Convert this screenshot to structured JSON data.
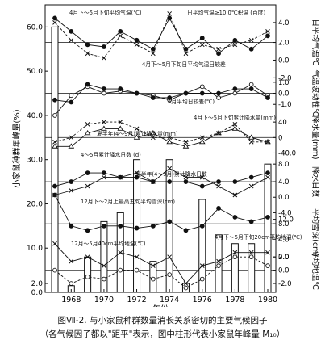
{
  "chart_data": {
    "type": "bar",
    "years": [
      1967,
      1968,
      1969,
      1970,
      1971,
      1972,
      1973,
      1974,
      1975,
      1976,
      1977,
      1978,
      1979,
      1980
    ],
    "bar_values": [
      60,
      1.5,
      8,
      16,
      18,
      30,
      7,
      30,
      2,
      21,
      13,
      11,
      11,
      29
    ],
    "left_axis": {
      "label": "小家鼠种群年峰量(%)",
      "ticks": [
        "0.0",
        "2.0",
        "10.0",
        "20.0",
        "30.0",
        "40.0",
        "50.0",
        "60.0"
      ],
      "ylim": [
        0,
        65
      ]
    },
    "xlabel": "年份",
    "x_ticks": [
      "1968",
      "1970",
      "1972",
      "1974",
      "1976",
      "1978",
      "1980"
    ],
    "right_axes": [
      {
        "label": "日平均气温℃",
        "ticks": [
          "4.0",
          "2.0",
          "0.0",
          "-2.0"
        ]
      },
      {
        "label": "气温波动性℃",
        "ticks": [
          "1.0",
          "0.0",
          "-1.0"
        ]
      },
      {
        "label": "降水量(mm)",
        "ticks": [
          "40",
          "0",
          "-40.0"
        ]
      },
      {
        "label": "降水日数",
        "ticks": [
          "8.0",
          "4.0",
          "0.0",
          "-4.0"
        ]
      },
      {
        "label": "平均雪深(cm)",
        "ticks": [
          "12.0",
          "8.0",
          "4.0",
          "0.0"
        ]
      },
      {
        "label": "平均地温℃",
        "ticks": [
          "2.0",
          "0.0",
          "-2.0"
        ]
      }
    ],
    "series": [
      {
        "name": "4月下～5月下旬平均气温(℃)",
        "marker": "filled-circle",
        "dash": "solid",
        "zero": 56.5,
        "values": [
          62,
          59,
          56,
          55.5,
          59,
          57,
          55,
          62,
          55,
          57.5,
          54,
          57,
          55,
          58
        ]
      },
      {
        "name": "日平均气温≥10.0℃积温(百度)",
        "marker": "cross",
        "dash": "dashed",
        "zero": 56.5,
        "values": [
          61,
          57,
          54,
          53,
          58,
          56,
          54,
          63,
          54,
          56,
          55,
          56,
          57,
          59
        ]
      },
      {
        "name": "4月下～5月下旬日平均气温日较差",
        "marker": "open-circle",
        "dash": "solid",
        "zero": 45,
        "values": [
          40,
          44.5,
          46.5,
          45,
          45.5,
          45,
          44.5,
          43.5,
          45,
          46.5,
          44,
          45,
          47,
          44.5
        ]
      },
      {
        "name": "4月平均日较差(℃)",
        "marker": "filled-circle",
        "dash": "solid",
        "zero": 45,
        "values": [
          43.5,
          43,
          47,
          46,
          46,
          45,
          44,
          44,
          45,
          45,
          45,
          46,
          46,
          44
        ]
      },
      {
        "name": "4月下～5月下旬累计降水量(mm)",
        "marker": "open-triangle",
        "dash": "solid",
        "zero": 35,
        "values": [
          33,
          33,
          36,
          37,
          37,
          35,
          36,
          34,
          33,
          34,
          36,
          37,
          35,
          34
        ]
      },
      {
        "name": "夏半年(4～9月)累计降水量(mm)",
        "marker": "cross",
        "dash": "dashed",
        "zero": 35,
        "values": [
          34,
          35,
          38,
          38.5,
          38.5,
          37,
          35,
          35,
          34,
          35,
          36,
          38,
          34,
          34
        ]
      },
      {
        "name": "4～5月累计降水日数(d)",
        "marker": "filled-circle",
        "dash": "solid",
        "zero": 25,
        "values": [
          24,
          25,
          27,
          27,
          26,
          26,
          25,
          25,
          25,
          24,
          25,
          25,
          26,
          27
        ]
      },
      {
        "name": "夏半年(4～9月)累计降水日数",
        "marker": "cross",
        "dash": "solid",
        "zero": 25,
        "values": [
          22,
          23,
          24,
          26,
          26,
          27,
          25,
          28,
          26,
          26,
          24,
          22,
          24,
          26
        ]
      },
      {
        "name": "12月下～2月上最高五旬平均雪深(cm)",
        "marker": "filled-circle",
        "dash": "solid",
        "zero": 15.5,
        "values": [
          22,
          15,
          14,
          15,
          15,
          14.5,
          15,
          16,
          14,
          15,
          19,
          17,
          16,
          17
        ]
      },
      {
        "name": "12月～5月40cm平均地温(℃)",
        "marker": "open-circle",
        "dash": "dashed",
        "zero": 5,
        "values": [
          5,
          2,
          3.5,
          3,
          5,
          5,
          3,
          4,
          1,
          3,
          6,
          8,
          8,
          6
        ]
      },
      {
        "name": "4月下～5月下旬20cm平均地温(℃)",
        "marker": "cross",
        "dash": "solid",
        "zero": 5,
        "values": [
          11,
          7,
          8,
          6,
          9,
          8,
          6,
          8,
          2,
          6,
          7,
          9,
          9,
          9
        ]
      }
    ],
    "annotations": [
      "4月下～5月下旬平均气温(℃)",
      "日平均气温≥10.0℃积温 (百度)",
      "4月下～5月下旬日平均气温日较差",
      "4月平均日较差(℃)",
      "4月下～5月下旬累计降水量(mm)",
      "夏半年(4～9月)累计降水量(mm)",
      "4～5月累计降水日数 (d)",
      "夏半年(4～9月)累计降水日数",
      "12月下～2月上最高五旬平均雪深(cm)",
      "12月～5月40cm平均地温(℃)",
      "4月下～5月下旬20cm平均地温(℃)"
    ],
    "grid": false
  },
  "caption": {
    "line1": "图Ⅶ-2. 与小家鼠种群数量消长关系密切的主要气候因子",
    "line2": "（各气候因子都以\"距平\"表示，图中柱形代表小家鼠年峰量 M₁₀）"
  }
}
